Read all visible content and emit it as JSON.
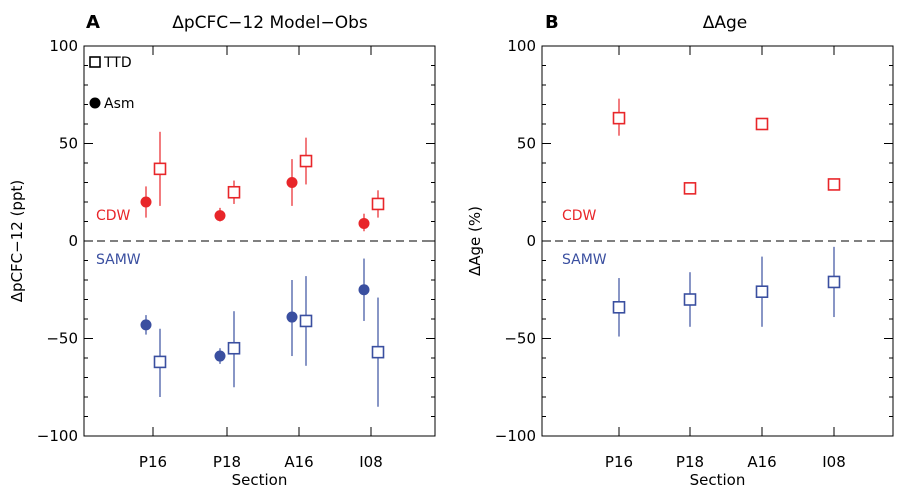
{
  "chart_data": [
    {
      "type": "scatter",
      "panel_label": "A",
      "title": "ΔpCFC−12 Model−Obs",
      "xlabel": "Section",
      "ylabel": "ΔpCFC−12 (ppt)",
      "categories": [
        "P16",
        "P18",
        "A16",
        "I08"
      ],
      "ylim": [
        -100,
        100
      ],
      "yticks": [
        -100,
        -50,
        0,
        50,
        100
      ],
      "zero_line": "dashed",
      "legend": [
        {
          "label": "TTD",
          "marker": "open-square"
        },
        {
          "label": "Asm",
          "marker": "filled-circle"
        }
      ],
      "group_labels": [
        {
          "text": "CDW",
          "color": "#e8262a"
        },
        {
          "text": "SAMW",
          "color": "#3a4fa0"
        }
      ],
      "series": [
        {
          "legend_ref": "Asm",
          "group": "CDW",
          "marker": "filled-circle",
          "color": "#e8262a",
          "values": [
            20,
            13,
            30,
            9
          ],
          "err_low": [
            12,
            10,
            18,
            5
          ],
          "err_high": [
            28,
            17,
            42,
            14
          ]
        },
        {
          "legend_ref": "TTD",
          "group": "CDW",
          "marker": "open-square",
          "color": "#e8262a",
          "values": [
            37,
            25,
            41,
            19
          ],
          "err_low": [
            18,
            19,
            29,
            12
          ],
          "err_high": [
            56,
            31,
            53,
            26
          ]
        },
        {
          "legend_ref": "Asm",
          "group": "SAMW",
          "marker": "filled-circle",
          "color": "#3a4fa0",
          "values": [
            -43,
            -59,
            -39,
            -25
          ],
          "err_low": [
            -48,
            -63,
            -59,
            -41
          ],
          "err_high": [
            -38,
            -55,
            -20,
            -9
          ]
        },
        {
          "legend_ref": "TTD",
          "group": "SAMW",
          "marker": "open-square",
          "color": "#3a4fa0",
          "values": [
            -62,
            -55,
            -41,
            -57
          ],
          "err_low": [
            -80,
            -75,
            -64,
            -85
          ],
          "err_high": [
            -45,
            -36,
            -18,
            -29
          ]
        }
      ]
    },
    {
      "type": "scatter",
      "panel_label": "B",
      "title": "ΔAge",
      "xlabel": "Section",
      "ylabel": "ΔAge (%)",
      "categories": [
        "P16",
        "P18",
        "A16",
        "I08"
      ],
      "ylim": [
        -100,
        100
      ],
      "yticks": [
        -100,
        -50,
        0,
        50,
        100
      ],
      "zero_line": "dashed",
      "group_labels": [
        {
          "text": "CDW",
          "color": "#e8262a"
        },
        {
          "text": "SAMW",
          "color": "#3a4fa0"
        }
      ],
      "series": [
        {
          "legend_ref": "TTD",
          "group": "CDW",
          "marker": "open-square",
          "color": "#e8262a",
          "values": [
            63,
            27,
            60,
            29
          ],
          "err_low": [
            54,
            25,
            57,
            27
          ],
          "err_high": [
            73,
            29,
            63,
            32
          ]
        },
        {
          "legend_ref": "TTD",
          "group": "SAMW",
          "marker": "open-square",
          "color": "#3a4fa0",
          "values": [
            -34,
            -30,
            -26,
            -21
          ],
          "err_low": [
            -49,
            -44,
            -44,
            -39
          ],
          "err_high": [
            -19,
            -16,
            -8,
            -3
          ]
        }
      ]
    }
  ]
}
